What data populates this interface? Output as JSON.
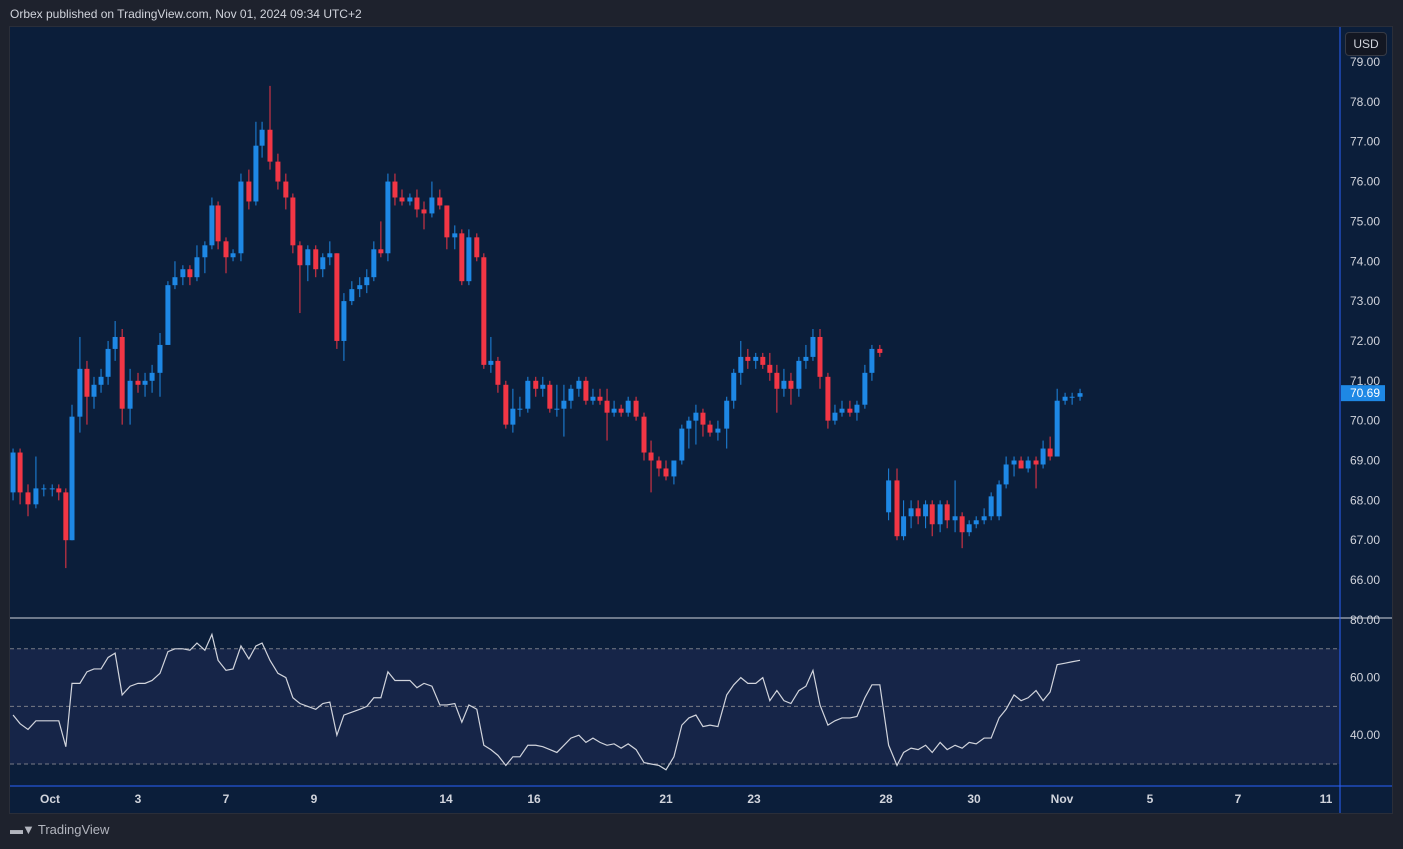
{
  "header": {
    "published": "Orbex published on TradingView.com, Nov 01, 2024 09:34 UTC+2"
  },
  "currency": "USD",
  "footer": {
    "brand": "TradingView",
    "logo_text": "TV"
  },
  "colors": {
    "up": "#1e88e5",
    "down": "#f23645",
    "background": "#0b1e3a",
    "rsi_line": "#d1d4dc",
    "rsi_band": "#162548",
    "last_price_bg": "#1e88e5"
  },
  "chart_data": [
    {
      "type": "candlestick",
      "title": "",
      "x_unit": "trading days from Oct 1",
      "ylim": [
        66,
        79
      ],
      "price_ticks": [
        "79.00",
        "78.00",
        "77.00",
        "76.00",
        "75.00",
        "74.00",
        "73.00",
        "72.00",
        "71.00",
        "70.00",
        "69.00",
        "68.00",
        "67.00",
        "66.00"
      ],
      "last_price": "70.69",
      "time_ticks": [
        {
          "t": 0,
          "label": "Oct"
        },
        {
          "t": 2,
          "label": "3"
        },
        {
          "t": 4,
          "label": "7"
        },
        {
          "t": 6,
          "label": "9"
        },
        {
          "t": 9,
          "label": "14"
        },
        {
          "t": 11,
          "label": "16"
        },
        {
          "t": 14,
          "label": "21"
        },
        {
          "t": 16,
          "label": "23"
        },
        {
          "t": 19,
          "label": "28"
        },
        {
          "t": 21,
          "label": "30"
        },
        {
          "t": 23,
          "label": "Nov"
        },
        {
          "t": 25,
          "label": "5"
        },
        {
          "t": 27,
          "label": "7"
        },
        {
          "t": 29,
          "label": "11"
        }
      ],
      "candles_columns": [
        "t",
        "open",
        "high",
        "low",
        "close"
      ],
      "candles": [
        [
          -0.84,
          68.2,
          69.3,
          68.0,
          69.2
        ],
        [
          -0.68,
          69.2,
          69.3,
          67.9,
          68.2
        ],
        [
          -0.5,
          68.2,
          68.4,
          67.6,
          67.9
        ],
        [
          -0.32,
          67.9,
          69.1,
          67.8,
          68.3
        ],
        [
          -0.14,
          68.3,
          68.4,
          68.1,
          68.3
        ],
        [
          0.05,
          68.3,
          68.4,
          68.1,
          68.3
        ],
        [
          0.2,
          68.3,
          68.4,
          68.0,
          68.2
        ],
        [
          0.36,
          68.2,
          68.3,
          66.3,
          67.0
        ],
        [
          0.5,
          67.0,
          70.4,
          67.0,
          70.1
        ],
        [
          0.68,
          70.1,
          72.1,
          69.7,
          71.3
        ],
        [
          0.84,
          71.3,
          71.5,
          69.9,
          70.6
        ],
        [
          1.0,
          70.6,
          71.1,
          70.3,
          70.9
        ],
        [
          1.16,
          70.9,
          71.3,
          70.7,
          71.1
        ],
        [
          1.32,
          71.1,
          72.0,
          70.9,
          71.8
        ],
        [
          1.48,
          71.8,
          72.5,
          71.5,
          72.1
        ],
        [
          1.64,
          72.1,
          72.3,
          69.9,
          70.3
        ],
        [
          1.82,
          70.3,
          71.3,
          69.9,
          71.0
        ],
        [
          2.0,
          71.0,
          71.2,
          70.7,
          70.9
        ],
        [
          2.16,
          70.9,
          71.2,
          70.6,
          71.0
        ],
        [
          2.32,
          71.0,
          71.4,
          70.7,
          71.2
        ],
        [
          2.5,
          71.2,
          72.2,
          70.6,
          71.9
        ],
        [
          2.68,
          71.9,
          73.5,
          71.9,
          73.4
        ],
        [
          2.84,
          73.4,
          74.0,
          73.3,
          73.6
        ],
        [
          3.02,
          73.6,
          73.9,
          73.4,
          73.8
        ],
        [
          3.18,
          73.8,
          73.9,
          73.4,
          73.6
        ],
        [
          3.34,
          73.6,
          74.4,
          73.5,
          74.1
        ],
        [
          3.52,
          74.1,
          74.5,
          73.7,
          74.4
        ],
        [
          3.68,
          74.4,
          75.6,
          74.3,
          75.4
        ],
        [
          3.82,
          75.4,
          75.5,
          74.3,
          74.5
        ],
        [
          4.0,
          74.5,
          74.6,
          73.7,
          74.1
        ],
        [
          4.16,
          74.1,
          74.3,
          74.0,
          74.2
        ],
        [
          4.34,
          74.2,
          76.2,
          74.0,
          76.0
        ],
        [
          4.52,
          76.0,
          76.3,
          75.3,
          75.5
        ],
        [
          4.68,
          75.5,
          77.5,
          75.4,
          76.9
        ],
        [
          4.82,
          76.9,
          77.5,
          76.6,
          77.3
        ],
        [
          5.0,
          77.3,
          78.4,
          76.3,
          76.5
        ],
        [
          5.18,
          76.5,
          76.7,
          75.8,
          76.0
        ],
        [
          5.36,
          76.0,
          76.2,
          75.3,
          75.6
        ],
        [
          5.52,
          75.6,
          75.7,
          74.2,
          74.4
        ],
        [
          5.68,
          74.4,
          74.5,
          72.7,
          73.9
        ],
        [
          5.86,
          73.9,
          74.4,
          73.5,
          74.3
        ],
        [
          6.04,
          74.3,
          74.4,
          73.6,
          73.8
        ],
        [
          6.2,
          73.8,
          74.2,
          73.6,
          74.1
        ],
        [
          6.36,
          74.1,
          74.5,
          73.9,
          74.2
        ],
        [
          6.52,
          74.2,
          74.2,
          71.8,
          72.0
        ],
        [
          6.68,
          72.0,
          73.2,
          71.5,
          73.0
        ],
        [
          6.86,
          73.0,
          73.5,
          72.9,
          73.3
        ],
        [
          7.04,
          73.3,
          73.6,
          73.1,
          73.4
        ],
        [
          7.2,
          73.4,
          73.8,
          73.2,
          73.6
        ],
        [
          7.36,
          73.6,
          74.5,
          73.5,
          74.3
        ],
        [
          7.52,
          74.3,
          75.0,
          74.1,
          74.2
        ],
        [
          7.68,
          74.2,
          76.2,
          74.0,
          76.0
        ],
        [
          7.84,
          76.0,
          76.2,
          75.4,
          75.6
        ],
        [
          8.0,
          75.6,
          75.8,
          75.4,
          75.5
        ],
        [
          8.18,
          75.5,
          75.7,
          75.4,
          75.6
        ],
        [
          8.34,
          75.6,
          75.8,
          75.1,
          75.3
        ],
        [
          8.5,
          75.3,
          75.5,
          74.8,
          75.2
        ],
        [
          8.68,
          75.2,
          76.0,
          75.1,
          75.6
        ],
        [
          8.86,
          75.6,
          75.8,
          75.3,
          75.4
        ],
        [
          9.02,
          75.4,
          75.4,
          74.3,
          74.6
        ],
        [
          9.2,
          74.6,
          74.9,
          74.3,
          74.7
        ],
        [
          9.36,
          74.7,
          74.8,
          73.4,
          73.5
        ],
        [
          9.52,
          73.5,
          74.8,
          73.4,
          74.6
        ],
        [
          9.7,
          74.6,
          74.7,
          74.0,
          74.1
        ],
        [
          9.86,
          74.1,
          74.2,
          71.3,
          71.4
        ],
        [
          10.02,
          71.4,
          72.1,
          71.2,
          71.5
        ],
        [
          10.18,
          71.5,
          71.6,
          70.7,
          70.9
        ],
        [
          10.36,
          70.9,
          71.0,
          69.8,
          69.9
        ],
        [
          10.52,
          69.9,
          70.8,
          69.7,
          70.3
        ],
        [
          10.68,
          70.3,
          70.6,
          70.1,
          70.3
        ],
        [
          10.86,
          70.3,
          71.1,
          70.2,
          71.0
        ],
        [
          11.04,
          71.0,
          71.1,
          70.6,
          70.8
        ],
        [
          11.2,
          70.8,
          71.1,
          70.6,
          70.9
        ],
        [
          11.36,
          70.9,
          71.0,
          70.2,
          70.3
        ],
        [
          11.52,
          70.3,
          70.9,
          70.1,
          70.3
        ],
        [
          11.68,
          70.3,
          70.9,
          69.6,
          70.5
        ],
        [
          11.84,
          70.5,
          70.9,
          70.3,
          70.8
        ],
        [
          12.02,
          70.8,
          71.1,
          70.6,
          71.0
        ],
        [
          12.18,
          71.0,
          71.1,
          70.4,
          70.5
        ],
        [
          12.34,
          70.5,
          70.8,
          70.4,
          70.6
        ],
        [
          12.5,
          70.6,
          70.8,
          70.4,
          70.5
        ],
        [
          12.66,
          70.5,
          70.8,
          69.5,
          70.2
        ],
        [
          12.82,
          70.2,
          70.5,
          70.1,
          70.3
        ],
        [
          12.98,
          70.3,
          70.4,
          70.1,
          70.2
        ],
        [
          13.14,
          70.2,
          70.6,
          70.1,
          70.5
        ],
        [
          13.32,
          70.5,
          70.6,
          70.0,
          70.1
        ],
        [
          13.5,
          70.1,
          70.2,
          69.0,
          69.2
        ],
        [
          13.66,
          69.2,
          69.5,
          68.2,
          69.0
        ],
        [
          13.84,
          69.0,
          69.1,
          68.6,
          68.8
        ],
        [
          14.0,
          68.8,
          69.0,
          68.5,
          68.6
        ],
        [
          14.18,
          68.6,
          69.0,
          68.4,
          69.0
        ],
        [
          14.36,
          69.0,
          69.9,
          68.9,
          69.8
        ],
        [
          14.52,
          69.8,
          70.1,
          69.3,
          70.0
        ],
        [
          14.68,
          70.0,
          70.4,
          69.4,
          70.2
        ],
        [
          14.84,
          70.2,
          70.3,
          69.6,
          69.9
        ],
        [
          15.0,
          69.9,
          70.0,
          69.6,
          69.7
        ],
        [
          15.18,
          69.7,
          70.0,
          69.5,
          69.8
        ],
        [
          15.38,
          69.8,
          70.6,
          69.3,
          70.5
        ],
        [
          15.54,
          70.5,
          71.3,
          70.3,
          71.2
        ],
        [
          15.7,
          71.2,
          72.0,
          70.9,
          71.6
        ],
        [
          15.86,
          71.6,
          71.8,
          71.3,
          71.5
        ],
        [
          16.04,
          71.5,
          71.7,
          71.3,
          71.6
        ],
        [
          16.2,
          71.6,
          71.7,
          71.3,
          71.4
        ],
        [
          16.36,
          71.4,
          71.7,
          71.0,
          71.2
        ],
        [
          16.52,
          71.2,
          71.4,
          70.2,
          70.8
        ],
        [
          16.68,
          70.8,
          71.3,
          70.6,
          71.0
        ],
        [
          16.84,
          71.0,
          71.2,
          70.4,
          70.8
        ],
        [
          17.02,
          70.8,
          71.6,
          70.6,
          71.5
        ],
        [
          17.18,
          71.5,
          71.9,
          71.3,
          71.6
        ],
        [
          17.34,
          71.6,
          72.3,
          71.5,
          72.1
        ],
        [
          17.5,
          72.1,
          72.3,
          70.8,
          71.1
        ],
        [
          17.68,
          71.1,
          71.2,
          69.8,
          70.0
        ],
        [
          17.84,
          70.0,
          70.4,
          69.9,
          70.2
        ],
        [
          18.0,
          70.2,
          70.5,
          70.1,
          70.3
        ],
        [
          18.18,
          70.3,
          70.5,
          70.1,
          70.2
        ],
        [
          18.34,
          70.2,
          70.5,
          70.0,
          70.4
        ],
        [
          18.52,
          70.4,
          71.4,
          70.3,
          71.2
        ],
        [
          18.68,
          71.2,
          71.9,
          71.0,
          71.8
        ],
        [
          18.86,
          71.8,
          71.9,
          71.6,
          71.7
        ],
        [
          19.06,
          67.7,
          68.8,
          67.5,
          68.5
        ],
        [
          19.25,
          68.5,
          68.8,
          67.0,
          67.1
        ],
        [
          19.4,
          67.1,
          68.0,
          67.0,
          67.6
        ],
        [
          19.57,
          67.6,
          68.0,
          67.3,
          67.8
        ],
        [
          19.73,
          67.8,
          68.0,
          67.4,
          67.6
        ],
        [
          19.9,
          67.6,
          68.0,
          67.3,
          67.9
        ],
        [
          20.05,
          67.9,
          68.0,
          67.1,
          67.4
        ],
        [
          20.23,
          67.4,
          68.0,
          67.2,
          67.9
        ],
        [
          20.39,
          67.9,
          68.0,
          67.3,
          67.5
        ],
        [
          20.57,
          67.5,
          68.5,
          67.2,
          67.6
        ],
        [
          20.73,
          67.6,
          67.7,
          66.8,
          67.2
        ],
        [
          20.89,
          67.2,
          67.5,
          67.1,
          67.4
        ],
        [
          21.05,
          67.4,
          67.6,
          67.3,
          67.5
        ],
        [
          21.23,
          67.5,
          67.8,
          67.4,
          67.6
        ],
        [
          21.39,
          67.6,
          68.2,
          67.5,
          68.1
        ],
        [
          21.57,
          67.6,
          68.5,
          67.5,
          68.4
        ],
        [
          21.73,
          68.4,
          69.1,
          68.3,
          68.9
        ],
        [
          21.91,
          68.9,
          69.1,
          68.6,
          69.0
        ],
        [
          22.07,
          69.0,
          69.1,
          68.8,
          68.8
        ],
        [
          22.23,
          68.8,
          69.1,
          68.7,
          69.0
        ],
        [
          22.41,
          69.0,
          69.1,
          68.3,
          68.9
        ],
        [
          22.57,
          68.9,
          69.5,
          68.8,
          69.3
        ],
        [
          22.73,
          69.3,
          69.6,
          69.0,
          69.1
        ],
        [
          22.89,
          69.1,
          70.8,
          69.1,
          70.5
        ],
        [
          23.07,
          70.5,
          70.7,
          70.4,
          70.6
        ],
        [
          23.23,
          70.6,
          70.7,
          70.4,
          70.6
        ],
        [
          23.41,
          70.6,
          70.8,
          70.5,
          70.69
        ]
      ]
    },
    {
      "type": "line",
      "title": "RSI",
      "ylim": [
        25,
        82
      ],
      "ticks": [
        "80.00",
        "60.00",
        "40.00"
      ],
      "levels": [
        70,
        50,
        30
      ],
      "values": [
        47,
        44,
        42,
        45,
        45,
        45,
        45,
        36,
        58,
        58,
        62,
        63,
        63,
        67,
        68.5,
        54,
        57,
        58,
        58,
        59,
        61.5,
        69,
        70,
        70,
        69.5,
        72,
        69.5,
        75,
        66,
        62.5,
        63,
        71,
        66.5,
        71,
        72,
        66,
        61.5,
        60,
        53,
        51,
        50,
        49,
        51,
        51.5,
        40,
        47,
        48,
        49,
        50,
        53,
        53,
        62,
        59,
        59,
        59,
        56.5,
        58,
        57,
        50.5,
        50.5,
        51,
        44.5,
        50.5,
        49,
        36.5,
        35,
        33,
        29.5,
        32.5,
        32.5,
        36.5,
        36.5,
        36,
        35,
        34,
        36.5,
        39,
        40,
        37.5,
        39,
        37.5,
        36.5,
        37,
        35.5,
        37,
        35,
        30.5,
        30,
        29.5,
        28,
        32.5,
        43.5,
        46,
        47,
        43,
        43.5,
        43,
        54,
        57.5,
        60,
        58,
        58,
        60,
        52,
        55.5,
        52,
        51,
        55.5,
        57,
        62.5,
        50.5,
        43.5,
        45,
        46,
        46,
        46.5,
        53,
        57.5,
        57.5,
        36.5,
        29.5,
        34,
        35.5,
        35,
        36.5,
        34,
        37.5,
        35,
        36.5,
        35.5,
        37.5,
        37,
        39,
        39,
        46,
        49,
        54,
        52,
        53,
        55.5,
        52,
        55,
        64.5,
        65,
        65.5,
        66
      ]
    }
  ]
}
